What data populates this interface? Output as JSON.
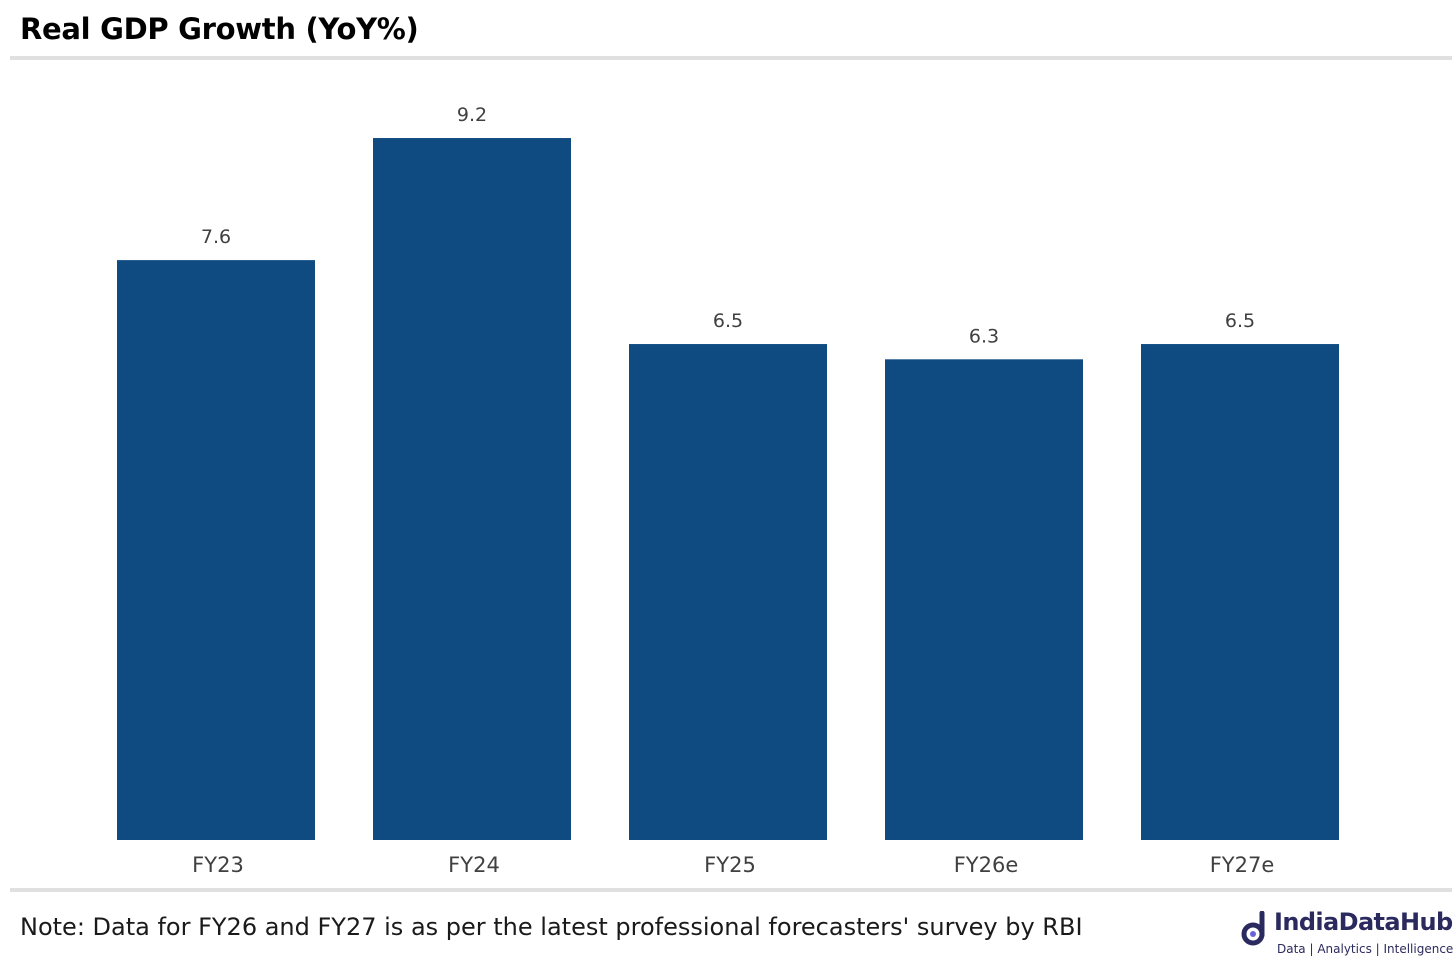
{
  "chart_data": {
    "type": "bar",
    "title": "Real GDP Growth (YoY%)",
    "categories": [
      "FY23",
      "FY24",
      "FY25",
      "FY26e",
      "FY27e"
    ],
    "values": [
      7.6,
      9.2,
      6.5,
      6.3,
      6.5
    ],
    "data_labels": [
      "7.6",
      "9.2",
      "6.5",
      "6.3",
      "6.5"
    ],
    "xlabel": "",
    "ylabel": "",
    "ylim": [
      0,
      10
    ],
    "grid": false,
    "legend": "none",
    "bar_color": "#0f4a80"
  },
  "footer": {
    "note": "Note: Data for FY26 and FY27 is as per the latest professional forecasters' survey by RBI"
  },
  "brand": {
    "name": "IndiaDataHub",
    "tagline": "Data | Analytics | Intelligence",
    "color": "#2b2a5e",
    "accent": "#6c63d9"
  }
}
